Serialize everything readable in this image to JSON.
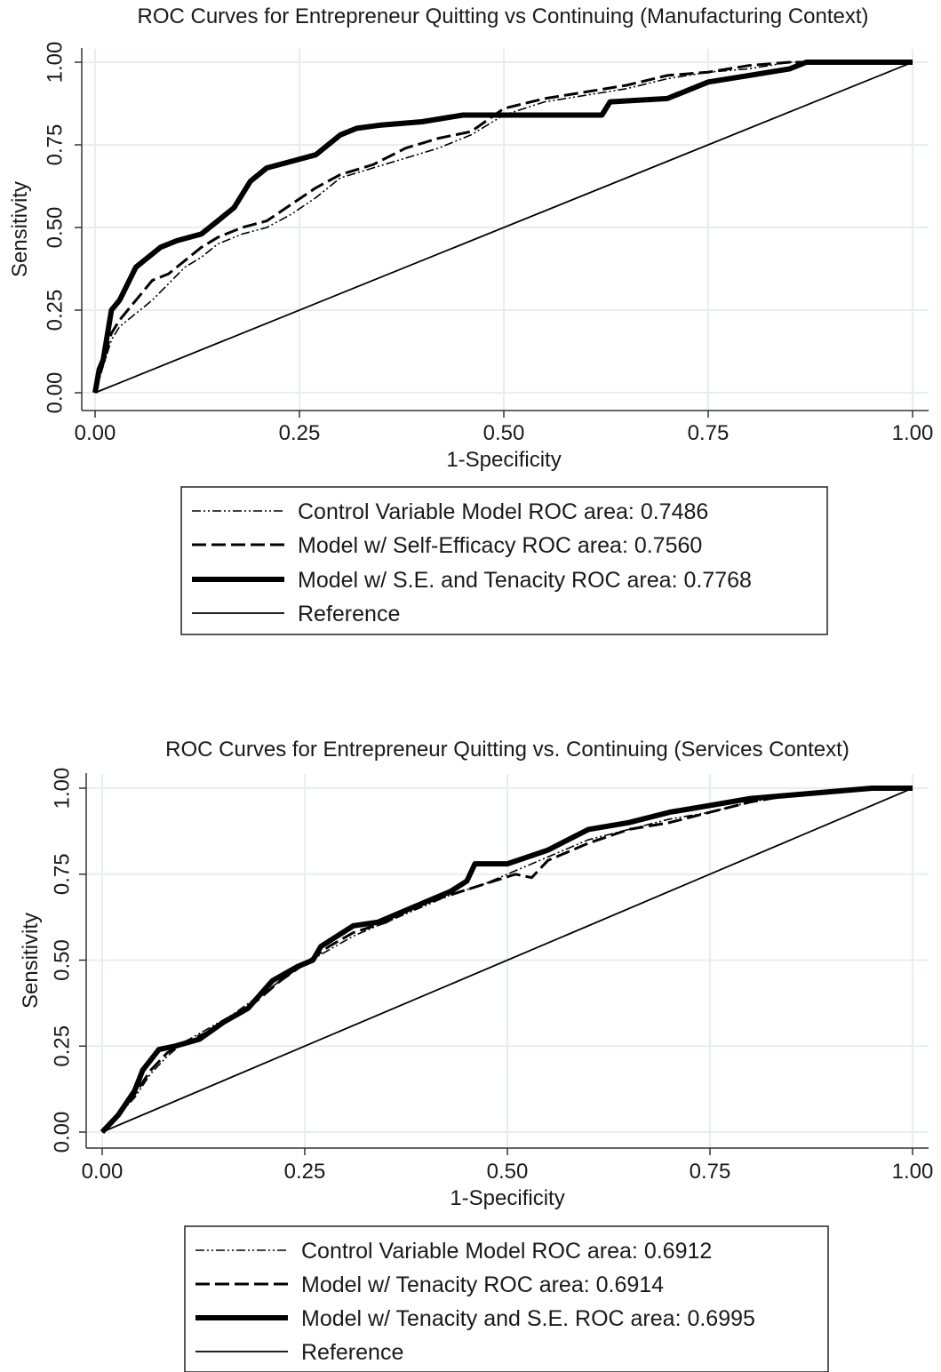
{
  "chart_data": [
    {
      "type": "line",
      "title": "ROC Curves for Entrepreneur Quitting vs Continuing (Manufacturing Context)",
      "xlabel": "1-Specificity",
      "ylabel": "Sensitivity",
      "xlim": [
        0,
        1
      ],
      "ylim": [
        0,
        1
      ],
      "xticks": [
        "0.00",
        "0.25",
        "0.50",
        "0.75",
        "1.00"
      ],
      "yticks": [
        "0.00",
        "0.25",
        "0.50",
        "0.75",
        "1.00"
      ],
      "grid": true,
      "legend_position": "bottom",
      "series": [
        {
          "name": "Control Variable Model ROC area: 0.7486",
          "style": "dash-dot",
          "x": [
            0,
            0.01,
            0.02,
            0.03,
            0.05,
            0.07,
            0.09,
            0.11,
            0.13,
            0.15,
            0.18,
            0.21,
            0.24,
            0.27,
            0.3,
            0.34,
            0.38,
            0.42,
            0.46,
            0.5,
            0.55,
            0.6,
            0.65,
            0.7,
            0.75,
            0.8,
            0.85,
            0.9,
            0.95,
            1.0
          ],
          "y": [
            0,
            0.08,
            0.16,
            0.2,
            0.24,
            0.28,
            0.33,
            0.38,
            0.41,
            0.45,
            0.48,
            0.5,
            0.54,
            0.59,
            0.65,
            0.68,
            0.71,
            0.74,
            0.78,
            0.84,
            0.88,
            0.9,
            0.92,
            0.95,
            0.97,
            0.98,
            1.0,
            1.0,
            1.0,
            1.0
          ]
        },
        {
          "name": "Model w/ Self-Efficacy ROC area: 0.7560",
          "style": "dash",
          "x": [
            0,
            0.01,
            0.02,
            0.03,
            0.05,
            0.07,
            0.09,
            0.11,
            0.13,
            0.15,
            0.18,
            0.21,
            0.24,
            0.27,
            0.3,
            0.34,
            0.38,
            0.42,
            0.46,
            0.5,
            0.55,
            0.6,
            0.65,
            0.7,
            0.75,
            0.8,
            0.85,
            0.9,
            0.95,
            1.0
          ],
          "y": [
            0,
            0.1,
            0.18,
            0.22,
            0.28,
            0.34,
            0.36,
            0.4,
            0.44,
            0.47,
            0.5,
            0.52,
            0.57,
            0.62,
            0.66,
            0.69,
            0.74,
            0.77,
            0.79,
            0.86,
            0.89,
            0.91,
            0.93,
            0.96,
            0.97,
            0.99,
            1.0,
            1.0,
            1.0,
            1.0
          ]
        },
        {
          "name": "Model w/ S.E. and Tenacity ROC area: 0.7768",
          "style": "solid-thick",
          "x": [
            0,
            0.005,
            0.01,
            0.02,
            0.03,
            0.04,
            0.05,
            0.06,
            0.07,
            0.08,
            0.1,
            0.13,
            0.15,
            0.17,
            0.19,
            0.21,
            0.24,
            0.27,
            0.3,
            0.32,
            0.35,
            0.4,
            0.45,
            0.5,
            0.55,
            0.62,
            0.63,
            0.7,
            0.75,
            0.8,
            0.85,
            0.87,
            0.9,
            1.0
          ],
          "y": [
            0,
            0.07,
            0.1,
            0.25,
            0.28,
            0.33,
            0.38,
            0.4,
            0.42,
            0.44,
            0.46,
            0.48,
            0.52,
            0.56,
            0.64,
            0.68,
            0.7,
            0.72,
            0.78,
            0.8,
            0.81,
            0.82,
            0.84,
            0.84,
            0.84,
            0.84,
            0.88,
            0.89,
            0.94,
            0.96,
            0.98,
            1.0,
            1.0,
            1.0
          ]
        },
        {
          "name": "Reference",
          "style": "solid-thin",
          "x": [
            0,
            1
          ],
          "y": [
            0,
            1
          ]
        }
      ]
    },
    {
      "type": "line",
      "title": "ROC Curves for Entrepreneur Quitting vs. Continuing (Services Context)",
      "xlabel": "1-Specificity",
      "ylabel": "Sensitivity",
      "xlim": [
        0,
        1
      ],
      "ylim": [
        0,
        1
      ],
      "xticks": [
        "0.00",
        "0.25",
        "0.50",
        "0.75",
        "1.00"
      ],
      "yticks": [
        "0.00",
        "0.25",
        "0.50",
        "0.75",
        "1.00"
      ],
      "grid": true,
      "legend_position": "bottom",
      "series": [
        {
          "name": "Control Variable Model ROC area: 0.6912",
          "style": "dash-dot",
          "x": [
            0,
            0.02,
            0.04,
            0.06,
            0.08,
            0.1,
            0.13,
            0.16,
            0.19,
            0.22,
            0.25,
            0.28,
            0.31,
            0.35,
            0.39,
            0.43,
            0.47,
            0.51,
            0.55,
            0.6,
            0.65,
            0.7,
            0.75,
            0.8,
            0.85,
            0.9,
            0.95,
            1.0
          ],
          "y": [
            0,
            0.05,
            0.1,
            0.17,
            0.22,
            0.26,
            0.3,
            0.34,
            0.39,
            0.44,
            0.49,
            0.53,
            0.57,
            0.61,
            0.65,
            0.69,
            0.72,
            0.76,
            0.8,
            0.85,
            0.88,
            0.91,
            0.93,
            0.96,
            0.98,
            0.99,
            1.0,
            1.0
          ]
        },
        {
          "name": "Model w/ Tenacity ROC area: 0.6914",
          "style": "dash",
          "x": [
            0,
            0.02,
            0.04,
            0.06,
            0.08,
            0.1,
            0.13,
            0.16,
            0.19,
            0.22,
            0.25,
            0.28,
            0.31,
            0.35,
            0.39,
            0.43,
            0.47,
            0.51,
            0.53,
            0.55,
            0.6,
            0.65,
            0.7,
            0.75,
            0.8,
            0.85,
            0.9,
            0.95,
            1.0
          ],
          "y": [
            0,
            0.05,
            0.11,
            0.18,
            0.23,
            0.26,
            0.29,
            0.33,
            0.38,
            0.44,
            0.49,
            0.54,
            0.58,
            0.61,
            0.66,
            0.69,
            0.72,
            0.75,
            0.74,
            0.79,
            0.84,
            0.88,
            0.9,
            0.93,
            0.96,
            0.98,
            0.99,
            1.0,
            1.0
          ]
        },
        {
          "name": "Model w/ Tenacity and S.E. ROC area: 0.6995",
          "style": "solid-thick",
          "x": [
            0,
            0.02,
            0.04,
            0.05,
            0.07,
            0.09,
            0.12,
            0.15,
            0.18,
            0.21,
            0.24,
            0.26,
            0.27,
            0.29,
            0.31,
            0.34,
            0.37,
            0.4,
            0.43,
            0.45,
            0.46,
            0.5,
            0.55,
            0.6,
            0.65,
            0.7,
            0.75,
            0.8,
            0.85,
            0.9,
            0.95,
            1.0
          ],
          "y": [
            0,
            0.05,
            0.12,
            0.18,
            0.24,
            0.25,
            0.27,
            0.32,
            0.36,
            0.44,
            0.48,
            0.5,
            0.54,
            0.57,
            0.6,
            0.61,
            0.64,
            0.67,
            0.7,
            0.73,
            0.78,
            0.78,
            0.82,
            0.88,
            0.9,
            0.93,
            0.95,
            0.97,
            0.98,
            0.99,
            1.0,
            1.0
          ]
        },
        {
          "name": "Reference",
          "style": "solid-thin",
          "x": [
            0,
            1
          ],
          "y": [
            0,
            1
          ]
        }
      ]
    }
  ]
}
